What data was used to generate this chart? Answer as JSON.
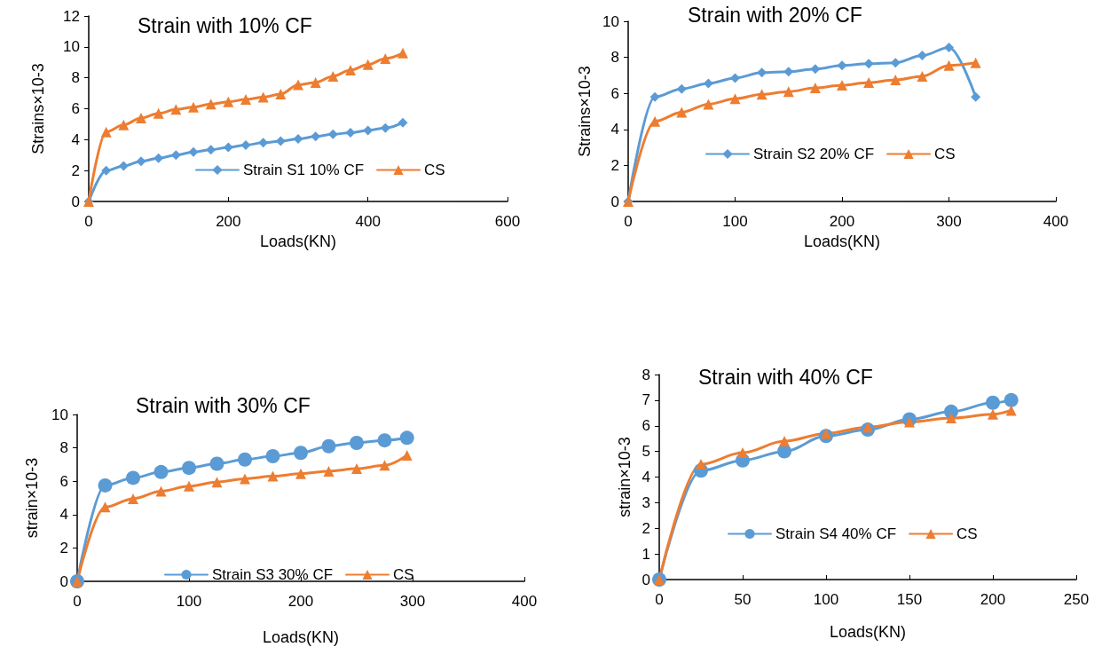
{
  "chart_data": [
    {
      "type": "line",
      "title": "Strain with 10% CF",
      "xlabel": "Loads(KN)",
      "ylabel": "Strains×10-3",
      "x": [
        0,
        25,
        50,
        75,
        100,
        125,
        150,
        175,
        200,
        225,
        250,
        275,
        300,
        325,
        350,
        375,
        400,
        425,
        450
      ],
      "xlim": [
        0,
        600
      ],
      "xticks": [
        0,
        200,
        400,
        600
      ],
      "ylim": [
        0,
        12
      ],
      "yticks": [
        0,
        2,
        4,
        6,
        8,
        10,
        12
      ],
      "grid": false,
      "legend": "bottom right",
      "line_style": "solid",
      "series": [
        {
          "name": "Strain S1 10% CF",
          "color": "#5b9bd5",
          "marker": "diamond",
          "values": [
            0,
            2.0,
            2.3,
            2.6,
            2.8,
            3.0,
            3.2,
            3.35,
            3.5,
            3.65,
            3.8,
            3.9,
            4.05,
            4.2,
            4.35,
            4.45,
            4.6,
            4.75,
            5.1
          ]
        },
        {
          "name": "CS",
          "color": "#ed7d31",
          "marker": "triangle",
          "values": [
            0,
            4.5,
            4.95,
            5.4,
            5.7,
            5.95,
            6.1,
            6.3,
            6.45,
            6.6,
            6.75,
            6.95,
            7.55,
            7.7,
            8.1,
            8.5,
            8.85,
            9.25,
            9.6
          ]
        }
      ]
    },
    {
      "type": "line",
      "title": "Strain with 20% CF",
      "xlabel": "Loads(KN)",
      "ylabel": "Strains×10-3",
      "x": [
        0,
        25,
        50,
        75,
        100,
        125,
        150,
        175,
        200,
        225,
        250,
        275,
        300,
        325
      ],
      "xlim": [
        0,
        400
      ],
      "xticks": [
        0,
        100,
        200,
        300,
        400
      ],
      "ylim": [
        0,
        10
      ],
      "yticks": [
        0,
        2,
        4,
        6,
        8,
        10
      ],
      "grid": false,
      "legend": "bottom",
      "line_style": "solid",
      "series": [
        {
          "name": "Strain S2 20% CF",
          "color": "#5b9bd5",
          "marker": "diamond",
          "values": [
            0,
            5.8,
            6.25,
            6.55,
            6.85,
            7.15,
            7.2,
            7.35,
            7.55,
            7.65,
            7.7,
            8.1,
            8.55,
            5.8
          ]
        },
        {
          "name": "CS",
          "color": "#ed7d31",
          "marker": "triangle",
          "values": [
            0,
            4.45,
            4.95,
            5.4,
            5.7,
            5.95,
            6.1,
            6.3,
            6.45,
            6.6,
            6.75,
            6.95,
            7.55,
            7.7
          ]
        }
      ]
    },
    {
      "type": "line",
      "title": "Strain with 30% CF",
      "xlabel": "Loads(KN)",
      "ylabel": "strain×10-3",
      "x": [
        0,
        25,
        50,
        75,
        100,
        125,
        150,
        175,
        200,
        225,
        250,
        275,
        295
      ],
      "xlim": [
        0,
        400
      ],
      "xticks": [
        0,
        100,
        200,
        300,
        400
      ],
      "ylim": [
        0,
        10
      ],
      "yticks": [
        0,
        2,
        4,
        6,
        8,
        10
      ],
      "grid": false,
      "legend": "bottom",
      "line_style": "solid",
      "series": [
        {
          "name": "Strain S3 30% CF",
          "color": "#5b9bd5",
          "marker": "circle",
          "values": [
            0,
            5.75,
            6.2,
            6.55,
            6.8,
            7.05,
            7.3,
            7.5,
            7.7,
            8.1,
            8.3,
            8.45,
            8.6
          ]
        },
        {
          "name": "CS",
          "color": "#ed7d31",
          "marker": "triangle",
          "values": [
            0,
            4.45,
            4.95,
            5.4,
            5.7,
            5.95,
            6.15,
            6.3,
            6.45,
            6.6,
            6.75,
            6.95,
            7.55
          ]
        }
      ]
    },
    {
      "type": "line",
      "title": "Strain with 40% CF",
      "xlabel": "Loads(KN)",
      "ylabel": "strain×10-3",
      "x": [
        0,
        25,
        50,
        75,
        100,
        125,
        150,
        175,
        200,
        211
      ],
      "xlim": [
        0,
        250
      ],
      "xticks": [
        0,
        50,
        100,
        150,
        200,
        250
      ],
      "ylim": [
        0,
        8
      ],
      "yticks": [
        0,
        1,
        2,
        3,
        4,
        5,
        6,
        7,
        8
      ],
      "grid": false,
      "legend": "bottom",
      "line_style": "solid",
      "series": [
        {
          "name": "Strain S4 40% CF",
          "color": "#5b9bd5",
          "marker": "circle",
          "values": [
            0,
            4.25,
            4.65,
            5.0,
            5.6,
            5.85,
            6.25,
            6.55,
            6.9,
            7.0
          ]
        },
        {
          "name": "CS",
          "color": "#ed7d31",
          "marker": "triangle",
          "values": [
            0,
            4.5,
            4.95,
            5.4,
            5.7,
            5.95,
            6.15,
            6.3,
            6.45,
            6.6
          ]
        }
      ]
    }
  ]
}
